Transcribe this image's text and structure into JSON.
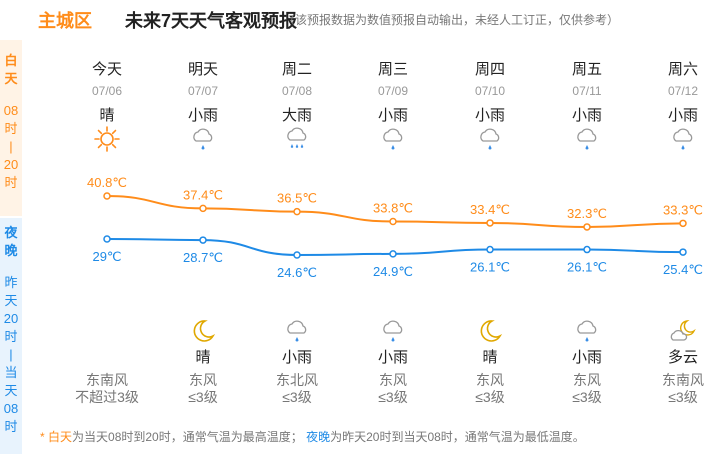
{
  "header": {
    "district": "主城区",
    "title": "未来7天天气客观预报",
    "note": "（该预报数据为数值预报自动输出，未经人工订正，仅供参考）"
  },
  "side": {
    "day_label": [
      "白",
      "天"
    ],
    "day_range": [
      "08",
      "时",
      "|",
      "20",
      "时"
    ],
    "night_label": [
      "夜",
      "晚"
    ],
    "night_range": [
      "昨",
      "天",
      "20",
      "时",
      "|",
      "当",
      "天",
      "08",
      "时"
    ]
  },
  "colors": {
    "day": "#ff8c1a",
    "night": "#1e8ae6"
  },
  "days": [
    {
      "name": "今天",
      "date": "07/06",
      "day_weather": "晴",
      "day_icon": "sun-icon",
      "high": "40.8℃",
      "low": "29℃",
      "night_weather": "",
      "night_icon": "",
      "wind_dir": "东南风",
      "wind_level": "不超过3级"
    },
    {
      "name": "明天",
      "date": "07/07",
      "day_weather": "小雨",
      "day_icon": "light-rain-icon",
      "high": "37.4℃",
      "low": "28.7℃",
      "night_weather": "晴",
      "night_icon": "moon-icon",
      "wind_dir": "东风",
      "wind_level": "≤3级"
    },
    {
      "name": "周二",
      "date": "07/08",
      "day_weather": "大雨",
      "day_icon": "heavy-rain-icon",
      "high": "36.5℃",
      "low": "24.6℃",
      "night_weather": "小雨",
      "night_icon": "light-rain-icon",
      "wind_dir": "东北风",
      "wind_level": "≤3级"
    },
    {
      "name": "周三",
      "date": "07/09",
      "day_weather": "小雨",
      "day_icon": "light-rain-icon",
      "high": "33.8℃",
      "low": "24.9℃",
      "night_weather": "小雨",
      "night_icon": "light-rain-icon",
      "wind_dir": "东风",
      "wind_level": "≤3级"
    },
    {
      "name": "周四",
      "date": "07/10",
      "day_weather": "小雨",
      "day_icon": "light-rain-icon",
      "high": "33.4℃",
      "low": "26.1℃",
      "night_weather": "晴",
      "night_icon": "moon-icon",
      "wind_dir": "东风",
      "wind_level": "≤3级"
    },
    {
      "name": "周五",
      "date": "07/11",
      "day_weather": "小雨",
      "day_icon": "light-rain-icon",
      "high": "32.3℃",
      "low": "26.1℃",
      "night_weather": "小雨",
      "night_icon": "light-rain-icon",
      "wind_dir": "东风",
      "wind_level": "≤3级"
    },
    {
      "name": "周六",
      "date": "07/12",
      "day_weather": "小雨",
      "day_icon": "light-rain-icon",
      "high": "33.3℃",
      "low": "25.4℃",
      "night_weather": "多云",
      "night_icon": "moon-cloud-icon",
      "wind_dir": "东南风",
      "wind_level": "≤3级"
    }
  ],
  "chart_data": {
    "type": "line",
    "x": [
      "07/06",
      "07/07",
      "07/08",
      "07/09",
      "07/10",
      "07/11",
      "07/12"
    ],
    "series": [
      {
        "values": [
          40.8,
          37.4,
          36.5,
          33.8,
          33.4,
          32.3,
          33.3
        ]
      },
      {
        "values": [
          29,
          28.7,
          24.6,
          24.9,
          26.1,
          26.1,
          25.4
        ]
      }
    ]
  },
  "footer": {
    "star": "* ",
    "day_word": "白天",
    "day_text": "为当天08时到20时，通常气温为最高温度；",
    "night_word": "夜晚",
    "night_text": "为昨天20时到当天08时，通常气温为最低温度。"
  }
}
